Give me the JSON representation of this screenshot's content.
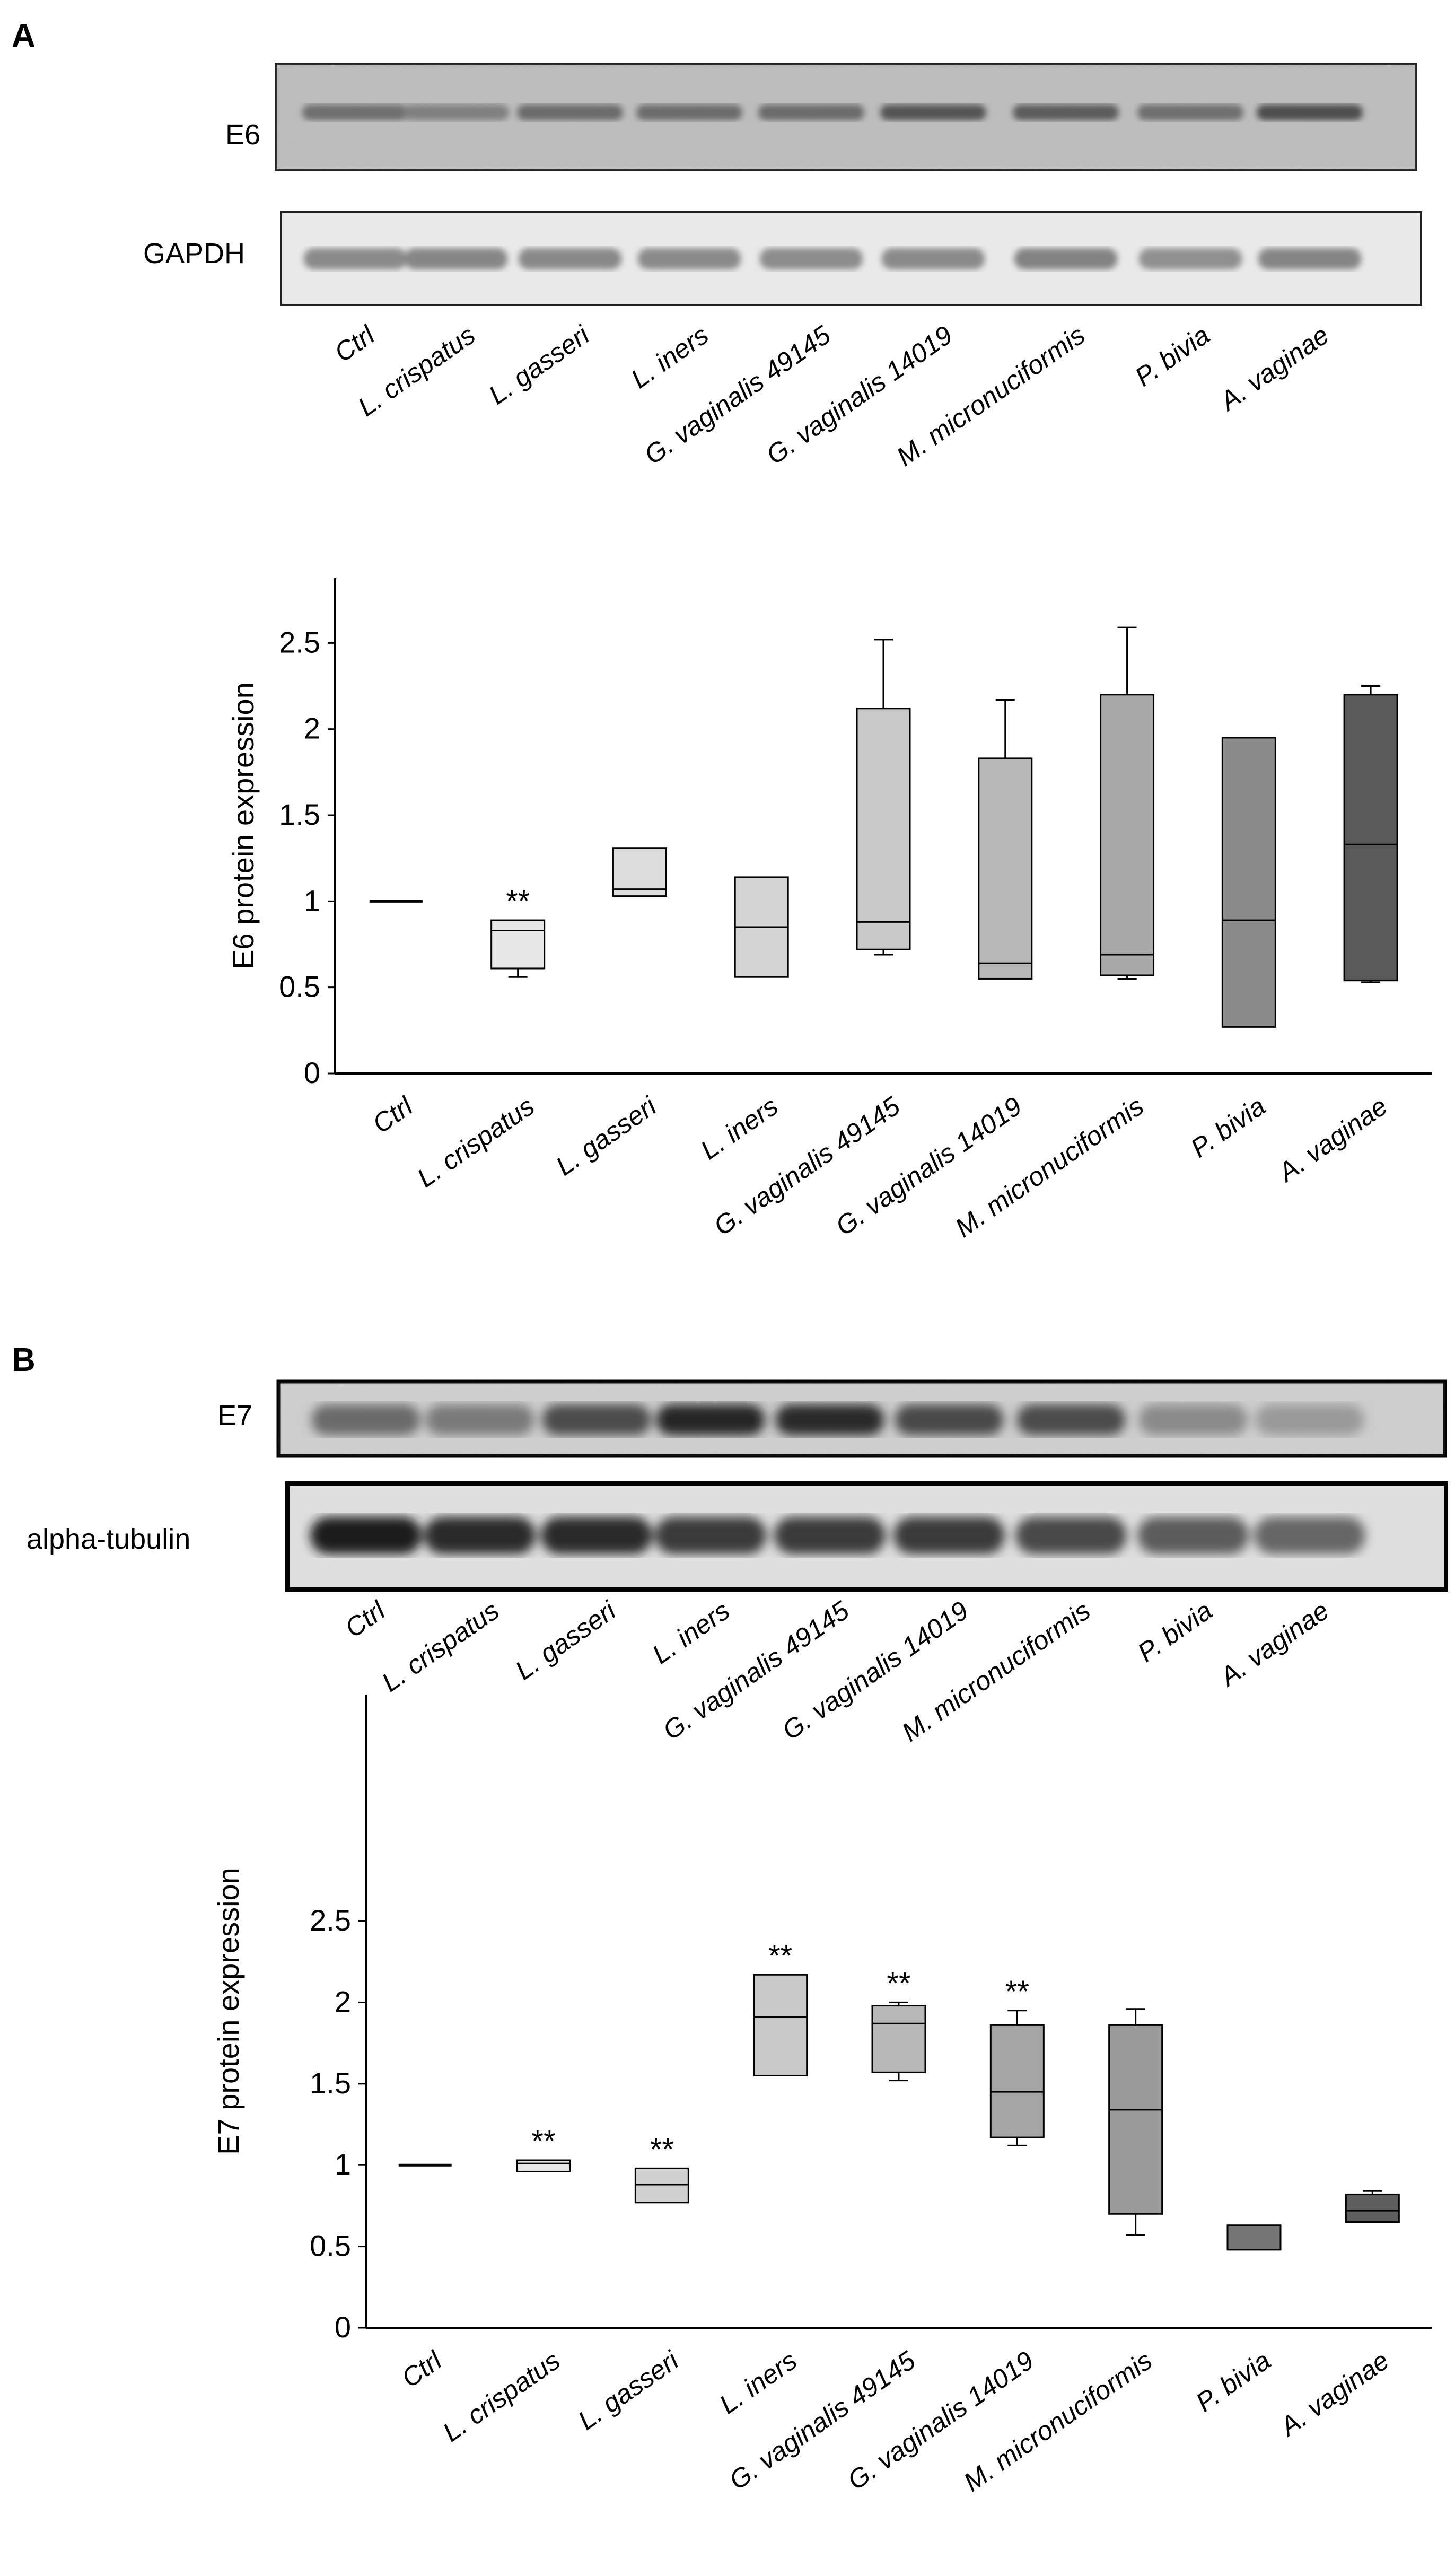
{
  "panels": [
    {
      "letter": "A",
      "blot": {
        "target_label": "E6",
        "loading_label": "GAPDH",
        "lanes": [
          "Ctrl",
          "L. crispatus",
          "L. gasseri",
          "L. iners",
          "G. vaginalis 49145",
          "G. vaginalis 14019",
          "M. micronuciformis",
          "P. bivia",
          "A. vaginae"
        ]
      }
    },
    {
      "letter": "B",
      "blot": {
        "target_label": "E7",
        "loading_label": "alpha-tubulin",
        "lanes": [
          "Ctrl",
          "L. crispatus",
          "L. gasseri",
          "L. iners",
          "G. vaginalis 49145",
          "G. vaginalis 14019",
          "M. micronuciformis",
          "P. bivia",
          "A. vaginae"
        ]
      }
    }
  ],
  "chart_data": [
    {
      "type": "box",
      "ylabel": "E6 protein expression",
      "xlabel": "",
      "ylim": [
        0,
        2.8
      ],
      "yticks": [
        "0",
        "0.5",
        "1",
        "1.5",
        "2",
        "2.5"
      ],
      "categories": [
        "Ctrl",
        "L. crispatus",
        "L. gasseri",
        "L. iners",
        "G. vaginalis 49145",
        "G. vaginalis 14019",
        "M. micronuciformis",
        "P. bivia",
        "A. vaginae"
      ],
      "boxes": [
        {
          "min": 1.0,
          "q1": 1.0,
          "median": 1.0,
          "q3": 1.0,
          "max": 1.0,
          "sig": "",
          "fill": "#000000"
        },
        {
          "min": 0.56,
          "q1": 0.61,
          "median": 0.83,
          "q3": 0.89,
          "max": 0.89,
          "sig": "**",
          "fill": "#e6e6e6"
        },
        {
          "min": 1.03,
          "q1": 1.03,
          "median": 1.07,
          "q3": 1.31,
          "max": 1.31,
          "sig": "",
          "fill": "#dcdcdc"
        },
        {
          "min": 0.56,
          "q1": 0.56,
          "median": 0.85,
          "q3": 1.14,
          "max": 1.14,
          "sig": "",
          "fill": "#d4d4d4"
        },
        {
          "min": 0.69,
          "q1": 0.72,
          "median": 0.88,
          "q3": 2.12,
          "max": 2.52,
          "sig": "",
          "fill": "#c8c8c8"
        },
        {
          "min": 0.55,
          "q1": 0.55,
          "median": 0.64,
          "q3": 1.83,
          "max": 2.17,
          "sig": "",
          "fill": "#b8b8b8"
        },
        {
          "min": 0.55,
          "q1": 0.57,
          "median": 0.69,
          "q3": 2.2,
          "max": 2.59,
          "sig": "",
          "fill": "#a8a8a8"
        },
        {
          "min": 0.27,
          "q1": 0.27,
          "median": 0.89,
          "q3": 1.95,
          "max": 1.95,
          "sig": "",
          "fill": "#8a8a8a"
        },
        {
          "min": 0.53,
          "q1": 0.54,
          "median": 1.33,
          "q3": 2.2,
          "max": 2.25,
          "sig": "",
          "fill": "#5a5a5a"
        }
      ]
    },
    {
      "type": "box",
      "ylabel": "E7 protein expression",
      "xlabel": "",
      "ylim": [
        0,
        2.8
      ],
      "yticks": [
        "0",
        "0.5",
        "1",
        "1.5",
        "2",
        "2.5"
      ],
      "categories": [
        "Ctrl",
        "L. crispatus",
        "L. gasseri",
        "L. iners",
        "G. vaginalis 49145",
        "G. vaginalis 14019",
        "M. micronuciformis",
        "P. bivia",
        "A. vaginae"
      ],
      "boxes": [
        {
          "min": 1.0,
          "q1": 1.0,
          "median": 1.0,
          "q3": 1.0,
          "max": 1.0,
          "sig": "",
          "fill": "#000000"
        },
        {
          "min": 0.96,
          "q1": 0.96,
          "median": 1.01,
          "q3": 1.03,
          "max": 1.03,
          "sig": "**",
          "fill": "#e6e6e6"
        },
        {
          "min": 0.77,
          "q1": 0.77,
          "median": 0.88,
          "q3": 0.98,
          "max": 0.98,
          "sig": "**",
          "fill": "#d0d0d0"
        },
        {
          "min": 1.55,
          "q1": 1.55,
          "median": 1.91,
          "q3": 2.17,
          "max": 2.17,
          "sig": "**",
          "fill": "#c8c8c8"
        },
        {
          "min": 1.52,
          "q1": 1.57,
          "median": 1.87,
          "q3": 1.98,
          "max": 2.0,
          "sig": "**",
          "fill": "#b8b8b8"
        },
        {
          "min": 1.12,
          "q1": 1.17,
          "median": 1.45,
          "q3": 1.86,
          "max": 1.95,
          "sig": "**",
          "fill": "#a5a5a5"
        },
        {
          "min": 0.57,
          "q1": 0.7,
          "median": 1.34,
          "q3": 1.86,
          "max": 1.96,
          "sig": "",
          "fill": "#9a9a9a"
        },
        {
          "min": 0.48,
          "q1": 0.48,
          "median": 0.48,
          "q3": 0.63,
          "max": 0.63,
          "sig": "",
          "fill": "#757575"
        },
        {
          "min": 0.65,
          "q1": 0.65,
          "median": 0.72,
          "q3": 0.82,
          "max": 0.84,
          "sig": "",
          "fill": "#5e5e5e"
        }
      ]
    }
  ]
}
